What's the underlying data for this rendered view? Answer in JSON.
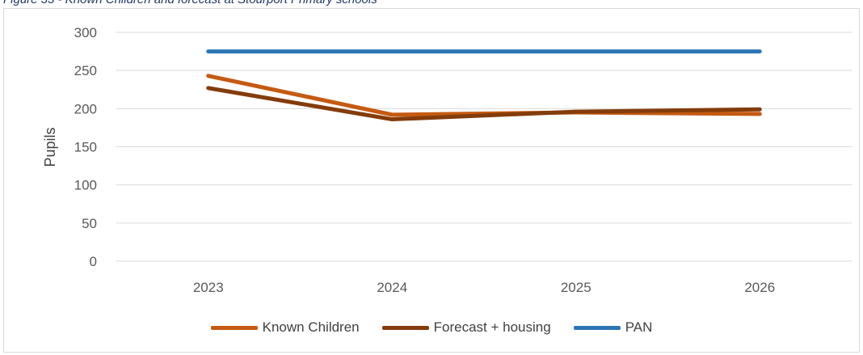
{
  "caption": "Figure 33 - Known Children and forecast at Stourport Primary schools",
  "chart_data": {
    "type": "line",
    "title": "",
    "xlabel": "",
    "ylabel": "Pupils",
    "categories": [
      "2023",
      "2024",
      "2025",
      "2026"
    ],
    "ylim": [
      0,
      300
    ],
    "yticks": [
      0,
      50,
      100,
      150,
      200,
      250,
      300
    ],
    "grid": true,
    "legend_position": "bottom",
    "series": [
      {
        "name": "Known Children",
        "values": [
          243,
          192,
          195,
          193
        ],
        "color": "#c55a11"
      },
      {
        "name": "Forecast + housing",
        "values": [
          227,
          186,
          196,
          199
        ],
        "color": "#843c0b"
      },
      {
        "name": "PAN",
        "values": [
          275,
          275,
          275,
          275
        ],
        "color": "#2e75b6"
      }
    ]
  }
}
